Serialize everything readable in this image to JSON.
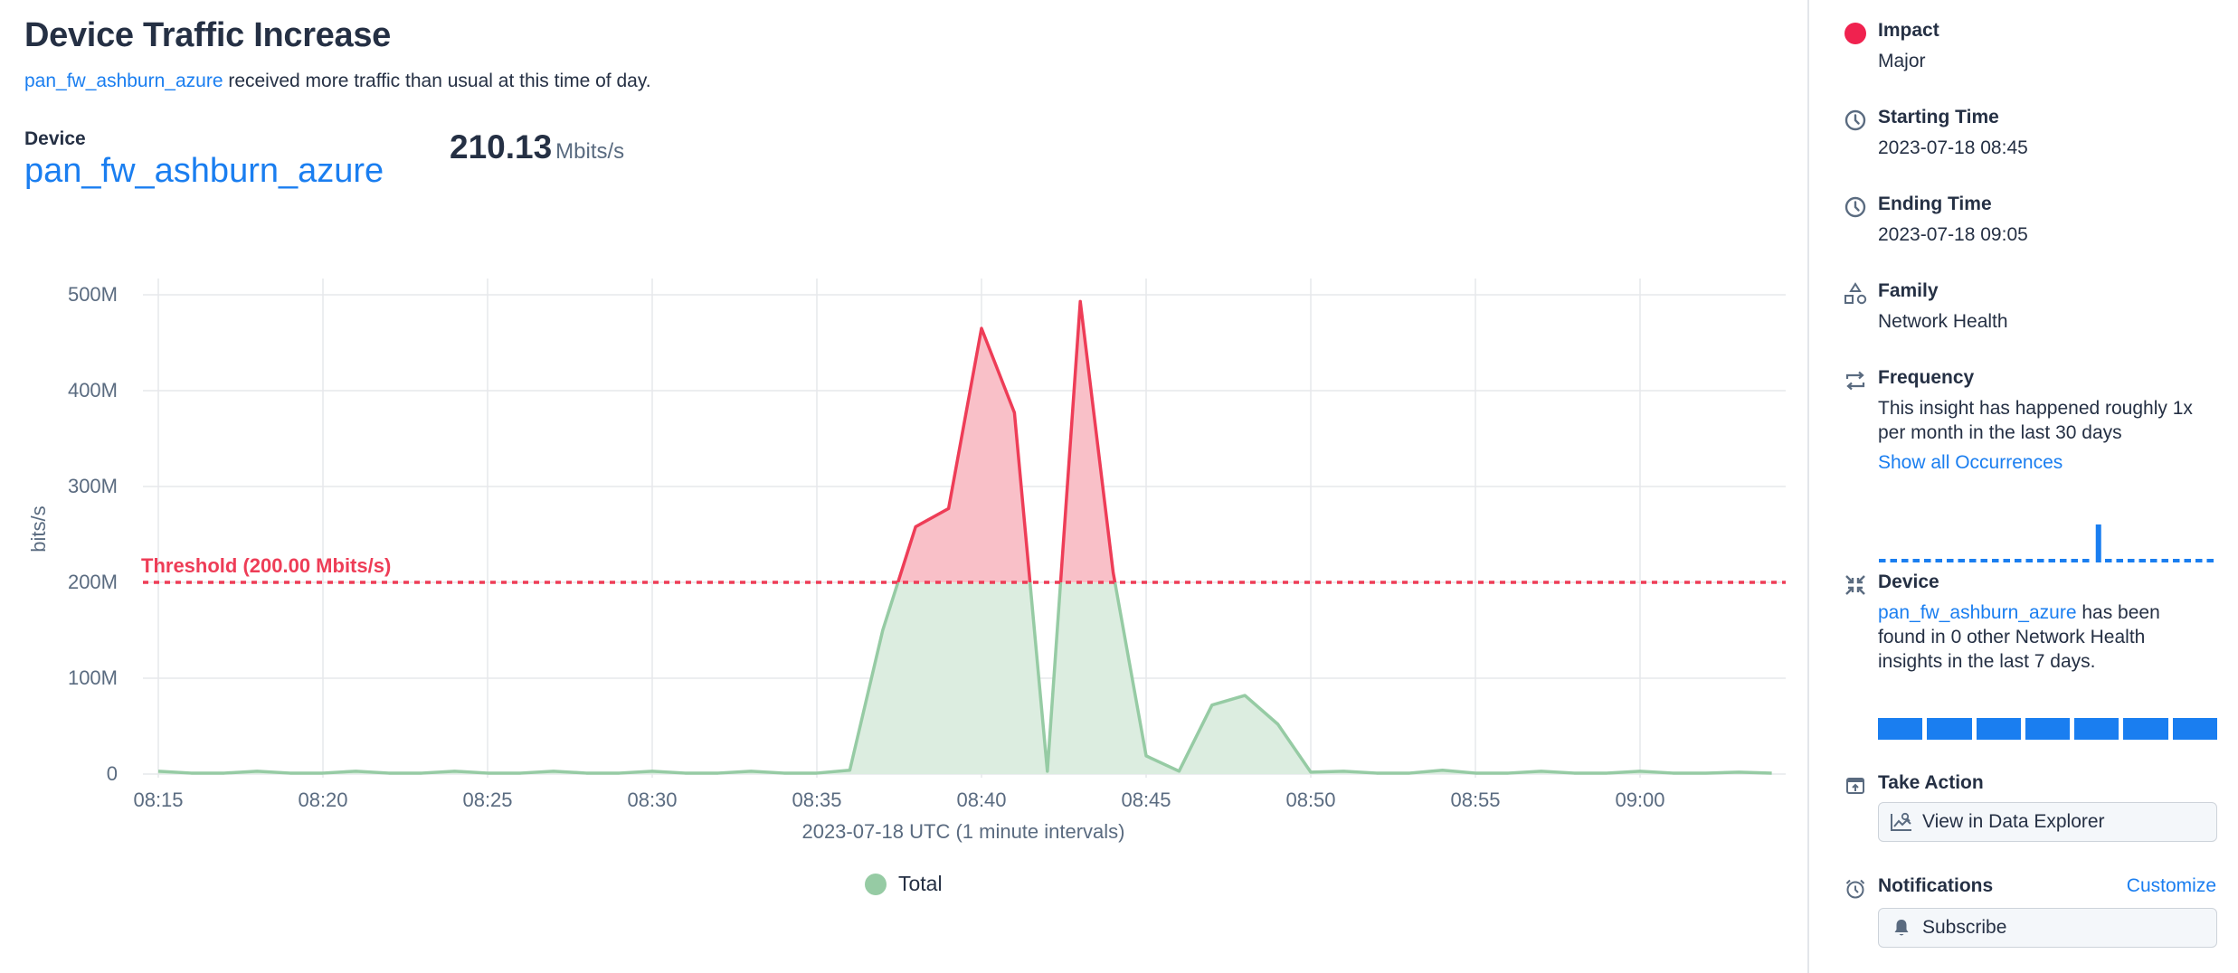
{
  "header": {
    "title": "Device Traffic Increase",
    "subtitle_link": "pan_fw_ashburn_azure",
    "subtitle_text": " received more traffic than usual at this time of day."
  },
  "summary": {
    "device_label": "Device",
    "device_name": "pan_fw_ashburn_azure",
    "metric_value": "210.13",
    "metric_unit": "Mbits/s"
  },
  "chart": {
    "ylabel": "bits/s",
    "xlabel": "2023-07-18 UTC (1 minute intervals)",
    "threshold_label": "Threshold (200.00 Mbits/s)",
    "legend_label": "Total",
    "yticks": [
      "0",
      "100M",
      "200M",
      "300M",
      "400M",
      "500M"
    ],
    "xticks": [
      "08:15",
      "08:20",
      "08:25",
      "08:30",
      "08:35",
      "08:40",
      "08:45",
      "08:50",
      "08:55",
      "09:00"
    ],
    "colors": {
      "line_normal": "#96cba4",
      "fill_normal": "#dcede0",
      "line_over": "#ee3d57",
      "fill_over": "#f9c0c8",
      "threshold": "#ee3d57",
      "grid": "#e6e8eb"
    }
  },
  "chart_data": {
    "type": "area",
    "title": "Device Traffic Increase",
    "xlabel": "2023-07-18 UTC (1 minute intervals)",
    "ylabel": "bits/s",
    "unit": "Mbits/s",
    "ylim": [
      0,
      500
    ],
    "grid": true,
    "legend_position": "bottom",
    "threshold": 200,
    "x": [
      "08:15",
      "08:16",
      "08:17",
      "08:18",
      "08:19",
      "08:20",
      "08:21",
      "08:22",
      "08:23",
      "08:24",
      "08:25",
      "08:26",
      "08:27",
      "08:28",
      "08:29",
      "08:30",
      "08:31",
      "08:32",
      "08:33",
      "08:34",
      "08:35",
      "08:36",
      "08:37",
      "08:38",
      "08:39",
      "08:40",
      "08:41",
      "08:42",
      "08:43",
      "08:44",
      "08:45",
      "08:46",
      "08:47",
      "08:48",
      "08:49",
      "08:50",
      "08:51",
      "08:52",
      "08:53",
      "08:54",
      "08:55",
      "08:56",
      "08:57",
      "08:58",
      "08:59",
      "09:00",
      "09:01",
      "09:02",
      "09:03",
      "09:04"
    ],
    "series": [
      {
        "name": "Total",
        "values": [
          3,
          1,
          1,
          3,
          1,
          1,
          3,
          1,
          1,
          3,
          1,
          1,
          3,
          1,
          1,
          3,
          1,
          1,
          3,
          1,
          1,
          4,
          150,
          258,
          277,
          465,
          377,
          3,
          493,
          210,
          19,
          3,
          72,
          82,
          52,
          2,
          3,
          1,
          1,
          4,
          1,
          1,
          3,
          1,
          1,
          3,
          1,
          1,
          2,
          1
        ]
      }
    ]
  },
  "panel": {
    "impact": {
      "title": "Impact",
      "value": "Major",
      "color": "#f0224f"
    },
    "starting_time": {
      "title": "Starting Time",
      "value": "2023-07-18 08:45"
    },
    "ending_time": {
      "title": "Ending Time",
      "value": "2023-07-18 09:05"
    },
    "family": {
      "title": "Family",
      "value": "Network Health"
    },
    "frequency": {
      "title": "Frequency",
      "text": "This insight has happened roughly 1x per month in the last 30 days",
      "link": "Show all Occurrences",
      "days": [
        0,
        0,
        0,
        0,
        0,
        0,
        0,
        0,
        0,
        0,
        0,
        0,
        0,
        0,
        0,
        0,
        0,
        0,
        0,
        1,
        0,
        0,
        0,
        0,
        0,
        0,
        0,
        0,
        0,
        0
      ]
    },
    "device": {
      "title": "Device",
      "link": "pan_fw_ashburn_azure",
      "text": " has been found in 0 other Network Health insights in the last 7 days.",
      "week_days": 7
    },
    "take_action": {
      "title": "Take Action",
      "button": "View in Data Explorer"
    },
    "notifications": {
      "title": "Notifications",
      "customize": "Customize",
      "button": "Subscribe"
    }
  }
}
